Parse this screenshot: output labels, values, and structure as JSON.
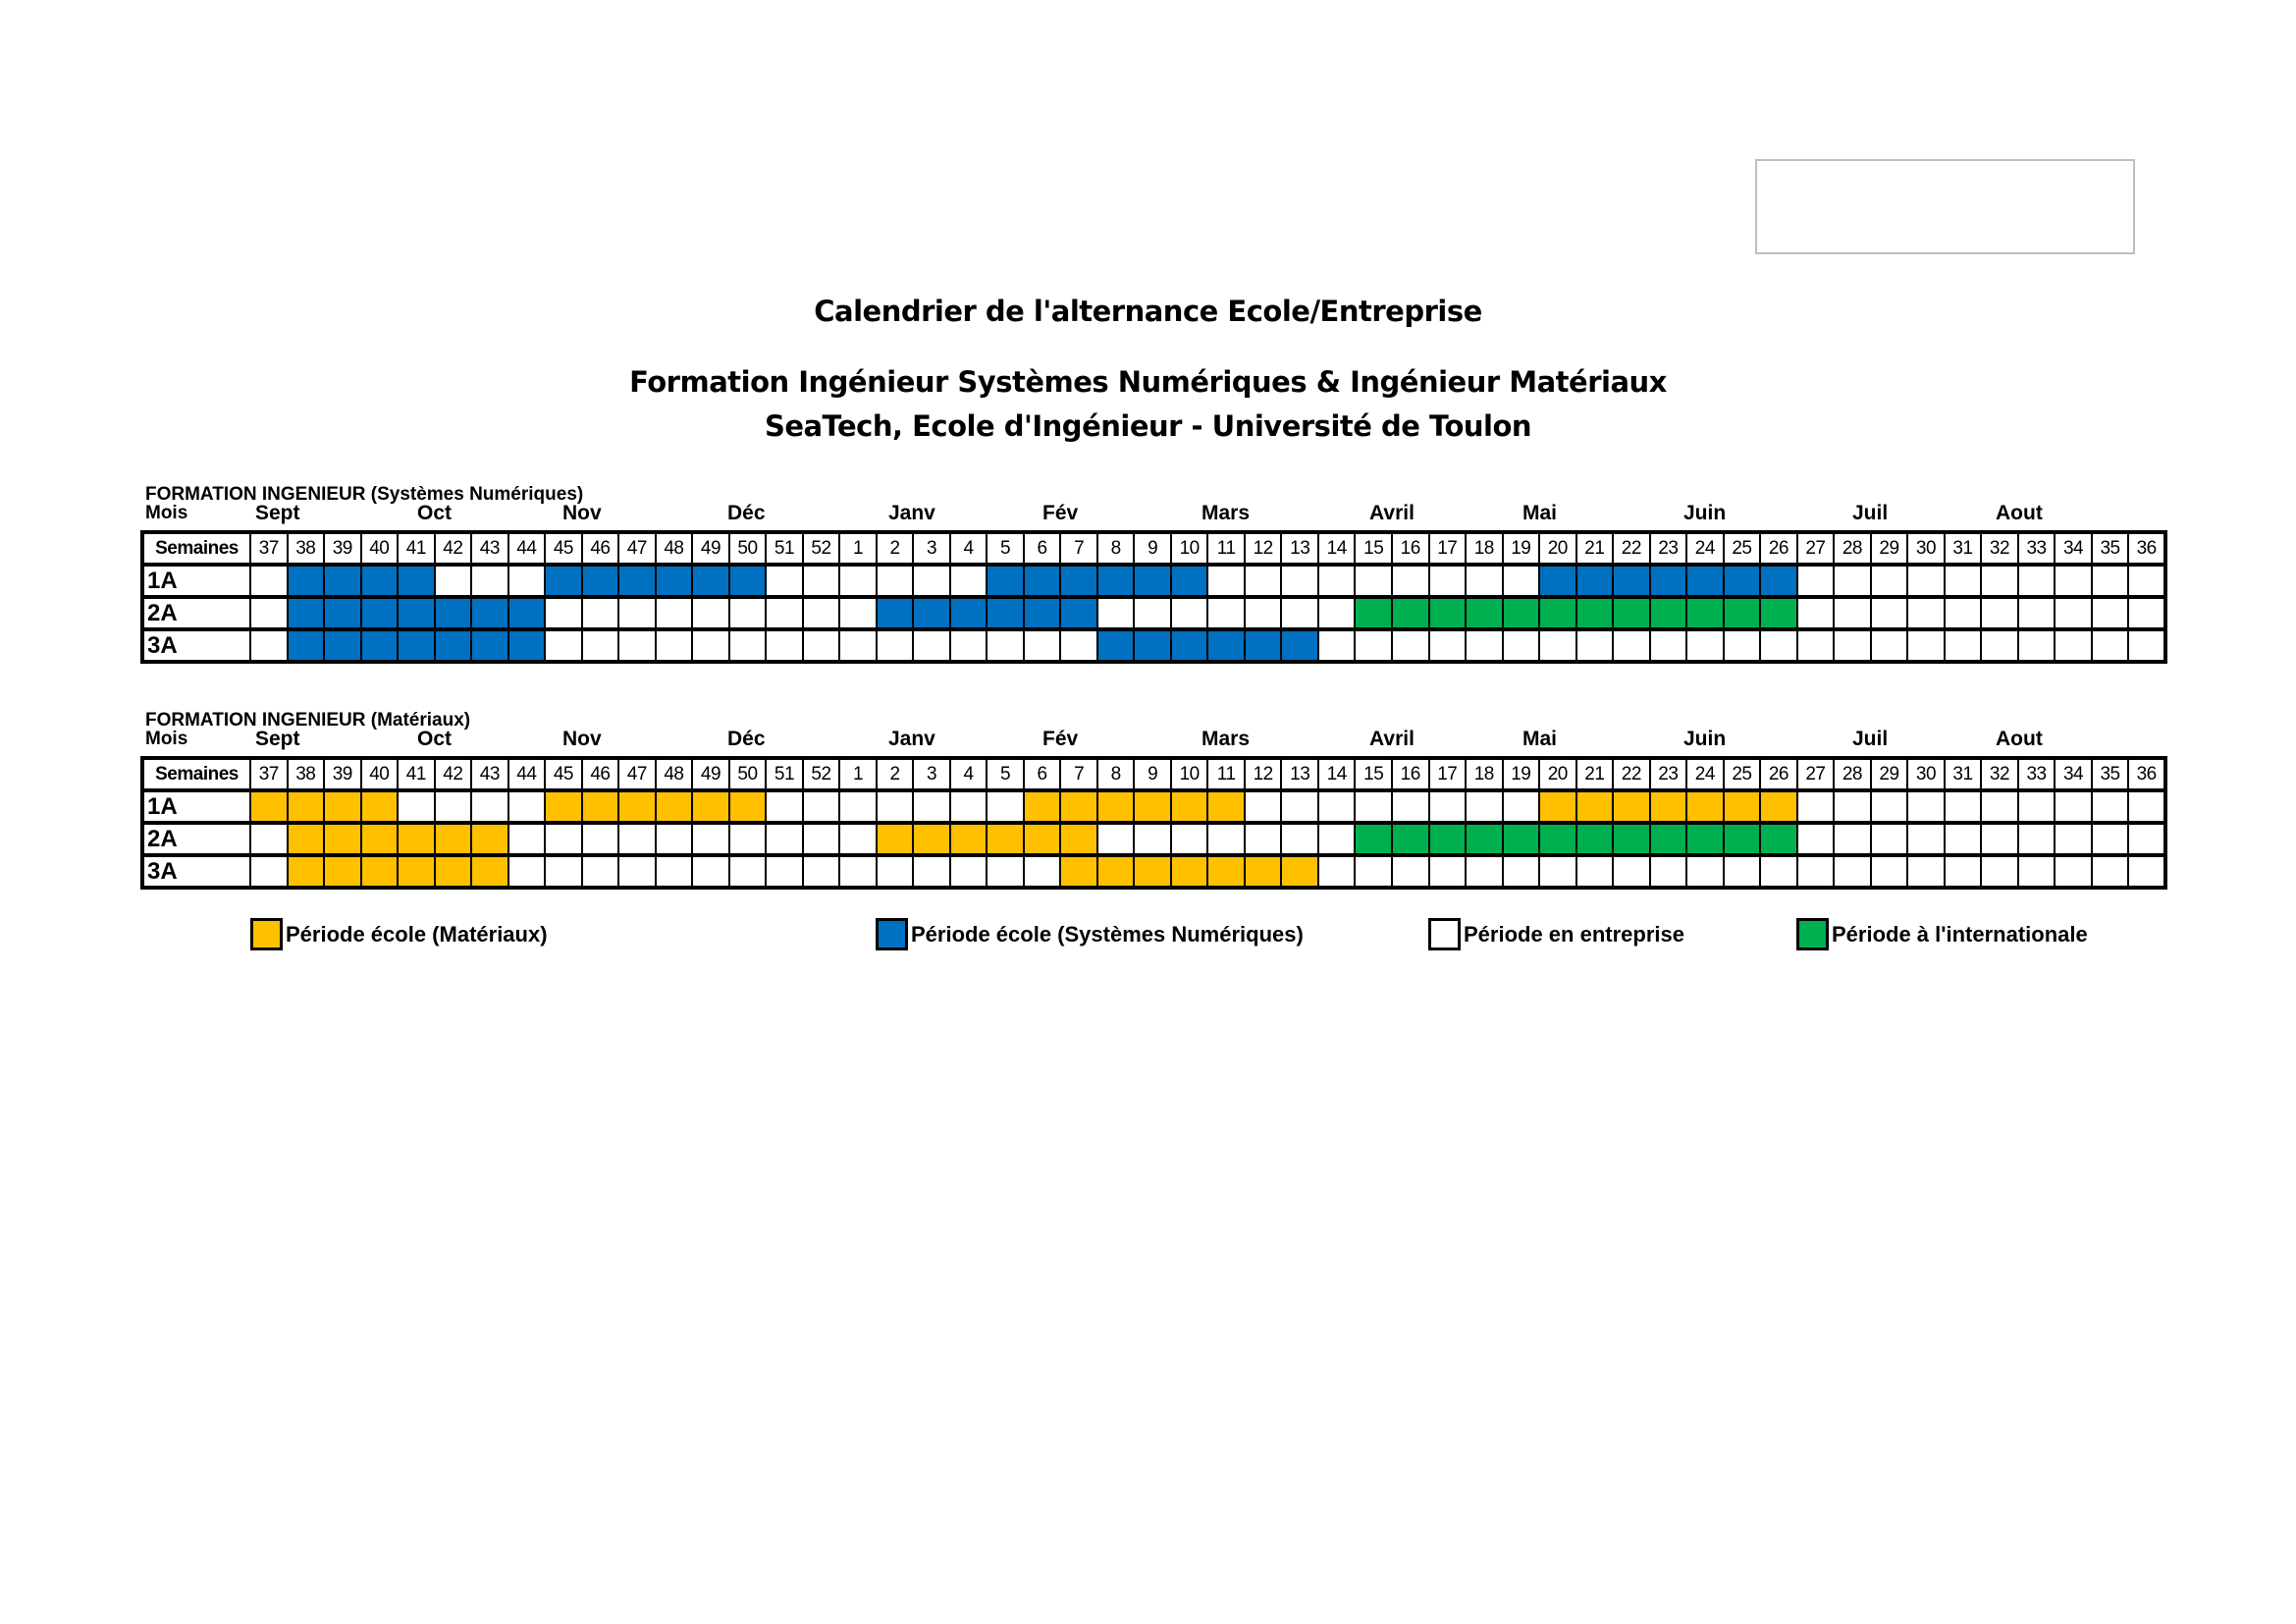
{
  "title": "Calendrier de l'alternance Ecole/Entreprise",
  "subtitle1": "Formation Ingénieur Systèmes Numériques & Ingénieur Matériaux",
  "subtitle2": "SeaTech, Ecole d'Ingénieur - Université de Toulon",
  "colors": {
    "sn": "#0070c0",
    "mat": "#ffc000",
    "intl": "#00b050",
    "ent": "#ffffff"
  },
  "mois_label": "Mois",
  "semaines_label": "Semaines",
  "months": [
    "Sept",
    "Oct",
    "Nov",
    "Déc",
    "Janv",
    "Fév",
    "Mars",
    "Avril",
    "Mai",
    "Juin",
    "Juil",
    "Aout"
  ],
  "weeks": [
    37,
    38,
    39,
    40,
    41,
    42,
    43,
    44,
    45,
    46,
    47,
    48,
    49,
    50,
    51,
    52,
    1,
    2,
    3,
    4,
    5,
    6,
    7,
    8,
    9,
    10,
    11,
    12,
    13,
    14,
    15,
    16,
    17,
    18,
    19,
    20,
    21,
    22,
    23,
    24,
    25,
    26,
    27,
    28,
    29,
    30,
    31,
    32,
    33,
    34,
    35,
    36
  ],
  "tables": [
    {
      "section": "FORMATION INGENIEUR (Systèmes Numériques)",
      "rows": [
        {
          "label": "1A",
          "periods": [
            {
              "from": 38,
              "to": 41,
              "type": "sn"
            },
            {
              "from": 45,
              "to": 50,
              "type": "sn"
            },
            {
              "from": 5,
              "to": 10,
              "type": "sn"
            },
            {
              "from": 20,
              "to": 26,
              "type": "sn"
            }
          ]
        },
        {
          "label": "2A",
          "periods": [
            {
              "from": 38,
              "to": 44,
              "type": "sn"
            },
            {
              "from": 2,
              "to": 7,
              "type": "sn"
            },
            {
              "from": 15,
              "to": 26,
              "type": "intl"
            }
          ]
        },
        {
          "label": "3A",
          "periods": [
            {
              "from": 38,
              "to": 44,
              "type": "sn"
            },
            {
              "from": 8,
              "to": 13,
              "type": "sn"
            }
          ]
        }
      ]
    },
    {
      "section": "FORMATION INGENIEUR (Matériaux)",
      "rows": [
        {
          "label": "1A",
          "periods": [
            {
              "from": 37,
              "to": 40,
              "type": "mat"
            },
            {
              "from": 45,
              "to": 50,
              "type": "mat"
            },
            {
              "from": 6,
              "to": 11,
              "type": "mat"
            },
            {
              "from": 20,
              "to": 26,
              "type": "mat"
            }
          ]
        },
        {
          "label": "2A",
          "periods": [
            {
              "from": 38,
              "to": 43,
              "type": "mat"
            },
            {
              "from": 2,
              "to": 7,
              "type": "mat"
            },
            {
              "from": 15,
              "to": 26,
              "type": "intl"
            }
          ]
        },
        {
          "label": "3A",
          "periods": [
            {
              "from": 38,
              "to": 43,
              "type": "mat"
            },
            {
              "from": 7,
              "to": 13,
              "type": "mat"
            }
          ]
        }
      ]
    }
  ],
  "legend": [
    {
      "type": "mat",
      "label": "Période école (Matériaux)"
    },
    {
      "type": "sn",
      "label": "Période école (Systèmes Numériques)"
    },
    {
      "type": "ent",
      "label": "Période en entreprise"
    },
    {
      "type": "intl",
      "label": "Période à l'internationale"
    }
  ]
}
